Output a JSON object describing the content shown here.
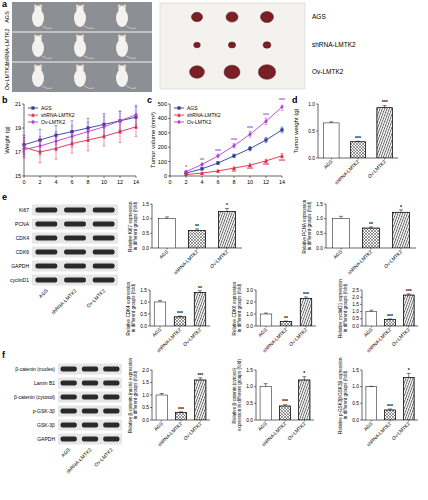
{
  "figure": {
    "panels": [
      "a",
      "b",
      "c",
      "d",
      "e",
      "f"
    ],
    "mouse_photo_labels": [
      "AGS",
      "shRNA-LMTK2",
      "Ov-LMTK2"
    ],
    "tumor_photo_labels": [
      "AGS",
      "shRNA-LMTK2",
      "Ov-LMTK2"
    ],
    "blot_e": {
      "rows": [
        "Ki67",
        "PCNA",
        "CDK4",
        "CDK6",
        "GAPDH",
        "cyclinD1"
      ],
      "lanes": [
        "AGS",
        "shRNA-LMTK2",
        "Ov-LMTK2"
      ]
    },
    "blot_f": {
      "rows": [
        "β-catenin (nucles)",
        "Lamin B1",
        "β-catenin (cytosol)",
        "p-GSK-3β",
        "GSK-3β",
        "GAPDH"
      ],
      "lanes": [
        "AGS",
        "shRNA-LMTK2",
        "Ov-LMTK2"
      ]
    }
  },
  "chart_data": [
    {
      "type": "line",
      "y_label": "Weight (g)",
      "x": [
        0,
        2,
        4,
        6,
        8,
        10,
        12,
        14
      ],
      "xlim": [
        0,
        14
      ],
      "xticks": [
        0,
        2,
        4,
        6,
        8,
        10,
        12,
        14
      ],
      "ylim": [
        15,
        21
      ],
      "yticks": [
        15,
        17,
        19,
        21
      ],
      "grid": false,
      "legend": "upper left",
      "series": [
        {
          "name": "AGS",
          "color": "#2b3a9c",
          "marker": "square",
          "values": [
            17.6,
            18.0,
            18.4,
            18.7,
            19.0,
            19.3,
            19.6,
            19.9
          ],
          "errors": [
            0.8,
            0.9,
            0.8,
            0.9,
            0.8,
            0.9,
            0.8,
            0.9
          ]
        },
        {
          "name": "shRNA-LMTK2",
          "color": "#e3263f",
          "marker": "triangle",
          "values": [
            17.4,
            17.0,
            17.3,
            17.7,
            18.0,
            18.3,
            18.7,
            19.1
          ],
          "errors": [
            0.8,
            0.9,
            0.9,
            0.8,
            0.9,
            0.8,
            0.9,
            0.8
          ]
        },
        {
          "name": "Ov-LMTK2",
          "color": "#b23fcf",
          "marker": "diamond",
          "values": [
            17.2,
            17.5,
            17.9,
            18.3,
            18.7,
            19.1,
            19.6,
            20.1
          ],
          "errors": [
            0.7,
            0.8,
            0.8,
            0.9,
            0.8,
            0.9,
            0.8,
            0.8
          ]
        }
      ]
    },
    {
      "type": "line",
      "y_label": "Tumor volume (mm³)",
      "x": [
        2,
        4,
        6,
        8,
        10,
        12,
        14
      ],
      "xlim": [
        0,
        14
      ],
      "xticks": [
        0,
        2,
        4,
        6,
        8,
        10,
        12,
        14
      ],
      "ylim": [
        0,
        500
      ],
      "yticks": [
        0,
        100,
        200,
        300,
        400,
        500
      ],
      "grid": false,
      "legend": "upper left",
      "series": [
        {
          "name": "AGS",
          "color": "#2b3a9c",
          "marker": "square",
          "values": [
            20,
            50,
            90,
            140,
            190,
            250,
            320
          ],
          "errors": [
            5,
            8,
            10,
            12,
            15,
            18,
            20
          ]
        },
        {
          "name": "shRNA-LMTK2",
          "color": "#e3263f",
          "marker": "triangle",
          "values": [
            10,
            20,
            35,
            55,
            75,
            105,
            140
          ],
          "errors": [
            3,
            5,
            6,
            8,
            10,
            12,
            15
          ],
          "significance": [
            null,
            null,
            null,
            "**",
            "***",
            "***",
            "***"
          ]
        },
        {
          "name": "Ov-LMTK2",
          "color": "#b23fcf",
          "marker": "diamond",
          "values": [
            30,
            80,
            140,
            210,
            290,
            380,
            480
          ],
          "errors": [
            6,
            10,
            12,
            15,
            20,
            22,
            25
          ],
          "significance": [
            "*",
            "**",
            "***",
            "***",
            "***",
            "***",
            "***"
          ]
        }
      ]
    },
    {
      "type": "bar",
      "y_label": "Tumor weight (g)",
      "categories": [
        "AGS",
        "shRNA-LMTK2",
        "Ov-LMTK2"
      ],
      "values": [
        0.65,
        0.3,
        0.93
      ],
      "errors": [
        0.02,
        0.01,
        0.04
      ],
      "significance": [
        null,
        "***",
        "***"
      ],
      "colors": [
        "#ffffff",
        "#ffffff",
        "#ffffff"
      ],
      "ylim": [
        0,
        1.0
      ],
      "yticks": [
        {
          "value": 0,
          "label": "0.0"
        },
        0.5,
        {
          "value": 1,
          "label": "1.0"
        }
      ]
    },
    {
      "type": "bar",
      "y_label": "Relative Ki67 expression in different groups (fold)",
      "categories": [
        "AGS",
        "shRNA-LMTK2",
        "Ov-LMTK2"
      ],
      "values": [
        1.0,
        0.6,
        1.25
      ],
      "errors": [
        0.06,
        0.05,
        0.1
      ],
      "significance": [
        null,
        "**",
        "*"
      ],
      "colors": [
        "#ffffff",
        "#ffffff",
        "#ffffff"
      ],
      "ylim": [
        0,
        1.5
      ],
      "yticks": [
        {
          "value": 0,
          "label": "0.0"
        },
        0.5,
        {
          "value": 1,
          "label": "1.0"
        },
        1.5
      ]
    },
    {
      "type": "bar",
      "y_label": "Relative PCNA expression in different groups (fold)",
      "categories": [
        "AGS",
        "shRNA-LMTK2",
        "Ov-LMTK2"
      ],
      "values": [
        1.0,
        0.68,
        1.22
      ],
      "errors": [
        0.08,
        0.04,
        0.08
      ],
      "significance": [
        null,
        "**",
        "*"
      ],
      "colors": [
        "#ffffff",
        "#ffffff",
        "#ffffff"
      ],
      "ylim": [
        0,
        1.5
      ],
      "yticks": [
        {
          "value": 0,
          "label": "0.0"
        },
        0.5,
        {
          "value": 1,
          "label": "1.0"
        },
        1.5
      ]
    },
    {
      "type": "bar",
      "y_label": "Relative CDK4 expression in different groups (fold)",
      "categories": [
        "AGS",
        "shRNA-LMTK2",
        "Ov-LMTK2"
      ],
      "values": [
        1.0,
        0.38,
        1.4
      ],
      "errors": [
        0.06,
        0.03,
        0.07
      ],
      "significance": [
        null,
        "***",
        "**"
      ],
      "colors": [
        "#ffffff",
        "#ffffff",
        "#ffffff"
      ],
      "ylim": [
        0,
        1.5
      ],
      "yticks": [
        {
          "value": 0,
          "label": "0.0"
        },
        0.5,
        {
          "value": 1,
          "label": "1.0"
        },
        1.5
      ]
    },
    {
      "type": "bar",
      "y_label": "Relative CDK6 expression in different groups (fold)",
      "categories": [
        "AGS",
        "shRNA-LMTK2",
        "Ov-LMTK2"
      ],
      "values": [
        1.0,
        0.38,
        2.3
      ],
      "errors": [
        0.08,
        0.03,
        0.12
      ],
      "significance": [
        null,
        "**",
        "***"
      ],
      "colors": [
        "#ffffff",
        "#ffffff",
        "#ffffff"
      ],
      "ylim": [
        0,
        3.0
      ],
      "yticks": [
        {
          "value": 0,
          "label": "0.0"
        },
        {
          "value": 1,
          "label": "1.0"
        },
        {
          "value": 2,
          "label": "2.0"
        },
        {
          "value": 3,
          "label": "3.0"
        }
      ]
    },
    {
      "type": "bar",
      "y_label": "Relative cyclinD1 expression in different groups (fold)",
      "categories": [
        "AGS",
        "shRNA-LMTK2",
        "Ov-LMTK2"
      ],
      "values": [
        1.0,
        0.45,
        2.15
      ],
      "errors": [
        0.1,
        0.04,
        0.08
      ],
      "significance": [
        null,
        "***",
        "***"
      ],
      "colors": [
        "#ffffff",
        "#ffffff",
        "#ffffff"
      ],
      "ylim": [
        0,
        2.5
      ],
      "yticks": [
        {
          "value": 0,
          "label": "0.0"
        },
        0.5,
        {
          "value": 1,
          "label": "1.0"
        },
        1.5,
        {
          "value": 2,
          "label": "2.0"
        },
        2.5
      ]
    },
    {
      "type": "bar",
      "y_label": "Relative β-catenin (nucls) expression in different groups (fold)",
      "categories": [
        "AGS",
        "shRNA-LMTK2",
        "Ov-LMTK2"
      ],
      "values": [
        1.0,
        0.3,
        1.6
      ],
      "errors": [
        0.06,
        0.03,
        0.09
      ],
      "significance": [
        null,
        "***",
        "***"
      ],
      "colors": [
        "#ffffff",
        "#ffffff",
        "#ffffff"
      ],
      "ylim": [
        0,
        2.0
      ],
      "yticks": [
        {
          "value": 0,
          "label": "0.0"
        },
        0.5,
        {
          "value": 1,
          "label": "1.0"
        },
        1.5,
        {
          "value": 2,
          "label": "2.0"
        }
      ]
    },
    {
      "type": "bar",
      "y_label": "Relative β-catenin (cytosol) expression in different groups (fold)",
      "categories": [
        "AGS",
        "shRNA-LMTK2",
        "Ov-LMTK2"
      ],
      "values": [
        1.0,
        0.42,
        1.2
      ],
      "errors": [
        0.09,
        0.04,
        0.1
      ],
      "significance": [
        null,
        "***",
        "*"
      ],
      "colors": [
        "#ffffff",
        "#ffffff",
        "#ffffff"
      ],
      "ylim": [
        0,
        1.5
      ],
      "yticks": [
        {
          "value": 0,
          "label": "0.0"
        },
        0.5,
        {
          "value": 1,
          "label": "1.0"
        },
        1.5
      ]
    },
    {
      "type": "bar",
      "y_label": "Relative p-GSK3β/GSK3β expression in different groups (fold)",
      "categories": [
        "AGS",
        "shRNA-LMTK2",
        "Ov-LMTK2"
      ],
      "values": [
        1.0,
        0.3,
        1.28
      ],
      "errors": [
        0.01,
        0.03,
        0.12
      ],
      "significance": [
        null,
        "***",
        "*"
      ],
      "colors": [
        "#ffffff",
        "#ffffff",
        "#ffffff"
      ],
      "ylim": [
        0,
        1.5
      ],
      "yticks": [
        {
          "value": 0,
          "label": "0.0"
        },
        0.5,
        {
          "value": 1,
          "label": "1.0"
        },
        1.5
      ]
    }
  ]
}
